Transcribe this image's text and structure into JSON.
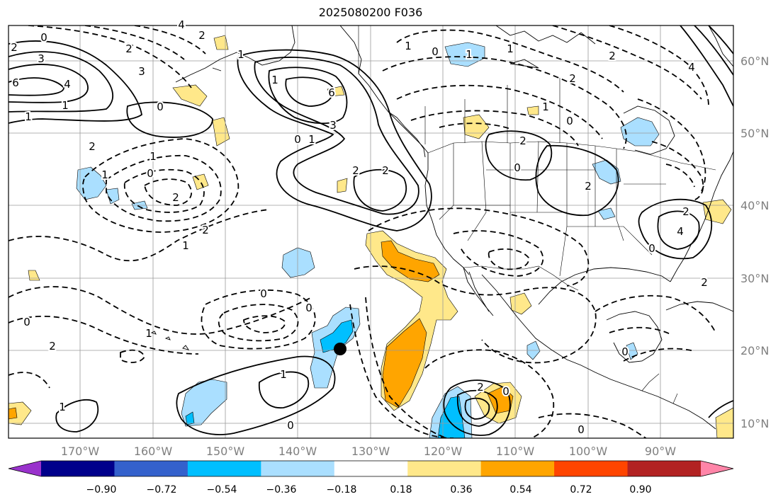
{
  "title": "2025080200 F036",
  "lat_labels": [
    "60°N",
    "50°N",
    "40°N",
    "30°N",
    "20°N",
    "10°N"
  ],
  "lon_labels": [
    "170°W",
    "160°W",
    "150°W",
    "140°W",
    "130°W",
    "120°W",
    "110°W",
    "100°W",
    "90°W"
  ],
  "colorbar": {
    "colors": [
      "#9932cc",
      "#00008b",
      "#3461cc",
      "#00bfff",
      "#aadfff",
      "#ffffff",
      "#ffe88a",
      "#ffa500",
      "#ff4500",
      "#b22222",
      "#ff85a8"
    ],
    "labels": [
      "−0.90",
      "−0.72",
      "−0.54",
      "−0.36",
      "−0.18",
      "0.18",
      "0.36",
      "0.54",
      "0.72",
      "0.90"
    ]
  },
  "contour_labels": [
    "0",
    "2",
    "3",
    "4",
    "6",
    "1",
    "1",
    "0",
    "2",
    "3",
    "2",
    "4",
    "2",
    "1",
    "1",
    "6",
    "3",
    "0",
    "1",
    "2",
    "2",
    "2",
    "1",
    "0",
    "2",
    "1",
    "1",
    "1",
    "0",
    "1",
    "1",
    "2",
    "1",
    "0",
    "2",
    "0",
    "2",
    "4",
    "2",
    "0",
    "2",
    "0",
    "2",
    "1",
    "0",
    "0",
    "1",
    "0",
    "1",
    "0",
    "0",
    "0",
    "2",
    "2",
    "4"
  ],
  "marker": {
    "label": "storm-center"
  }
}
